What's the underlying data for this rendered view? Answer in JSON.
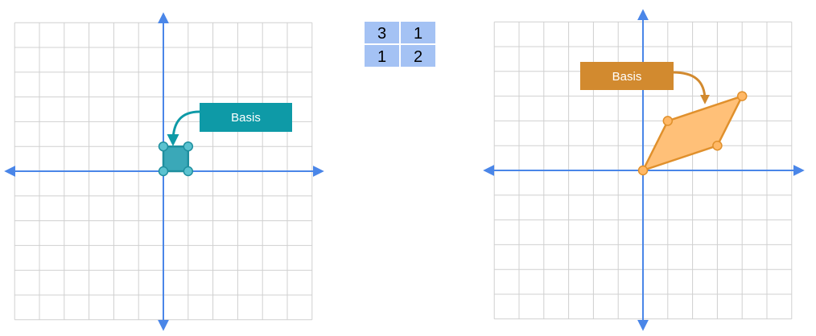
{
  "left_panel": {
    "grid_range": [
      -6,
      6
    ],
    "basis": {
      "polygon": [
        [
          0,
          0
        ],
        [
          1,
          0
        ],
        [
          1,
          1
        ],
        [
          0,
          1
        ]
      ],
      "fill": "#3aa8b8",
      "stroke": "#1f8f9f",
      "vertex_fill": "#5bc2d0"
    },
    "callout": {
      "label": "Basis",
      "color": "#0e9aa7"
    }
  },
  "matrix": {
    "rows": [
      [
        "3",
        "1"
      ],
      [
        "1",
        "2"
      ]
    ],
    "cell_color": "#a4c2f4",
    "border_color": "#ffffff"
  },
  "right_panel": {
    "grid_range": [
      -6,
      6
    ],
    "transformed": {
      "polygon": [
        [
          0,
          0
        ],
        [
          3,
          1
        ],
        [
          4,
          3
        ],
        [
          1,
          2
        ]
      ],
      "fill": "#ffc078",
      "stroke": "#e0902c",
      "vertex_fill": "#ffb866"
    },
    "callout": {
      "label": "Basis",
      "color": "#d28a2f"
    }
  },
  "colors": {
    "grid": "#d0d0d0",
    "axis": "#4a86e8"
  }
}
